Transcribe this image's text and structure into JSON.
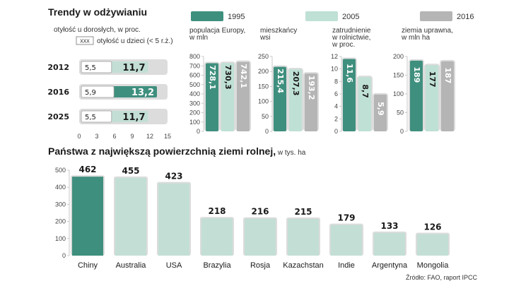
{
  "colors": {
    "c1995": "#3f8f7e",
    "c2005": "#bfe0d5",
    "c2016": "#b5b5b5",
    "track": "#dcdcdc",
    "light_bar": "#c3dfd5",
    "dark_bar": "#3f8f7e",
    "grid": "#bbbbbb"
  },
  "chart_data": [
    {
      "id": "obesity",
      "type": "bar",
      "orientation": "horizontal",
      "title": "Trendy w odżywianiu",
      "adult_label": "otyłość u dorosłych, w proc.",
      "child_badge": "xxx",
      "child_label": "otyłość u dzieci (< 5 r.ż.)",
      "categories": [
        "2012",
        "2016",
        "2025"
      ],
      "series": [
        {
          "name": "otyłość u dorosłych, w proc.",
          "values": [
            11.7,
            13.2,
            11.7
          ],
          "labels": [
            "11,7",
            "13,2",
            "11,7"
          ]
        },
        {
          "name": "otyłość u dzieci (< 5 r.ż.)",
          "values": [
            5.5,
            5.9,
            5.5
          ],
          "labels": [
            "5,5",
            "5,9",
            "5,5"
          ]
        }
      ],
      "xlim": [
        0,
        15
      ],
      "xticks": [
        "0",
        "3",
        "6",
        "9",
        "12",
        "15"
      ],
      "xtick_values": [
        0,
        3,
        6,
        9,
        12,
        15
      ]
    },
    {
      "id": "population",
      "type": "bar",
      "title": "populacja Europy, w mln",
      "title_lines": [
        "populacja Europy,",
        "w mln"
      ],
      "categories": [
        "1995",
        "2005",
        "2016"
      ],
      "values": [
        728.1,
        730.3,
        742.1
      ],
      "labels": [
        "728,1",
        "730,3",
        "742,1"
      ],
      "ylim": [
        0,
        800
      ],
      "yticks": [
        "0",
        "100",
        "200",
        "300",
        "400",
        "500",
        "600",
        "700",
        "800"
      ],
      "ytick_values": [
        0,
        100,
        200,
        300,
        400,
        500,
        600,
        700,
        800
      ]
    },
    {
      "id": "rural",
      "type": "bar",
      "title": "mieszkańcy wsi",
      "title_lines": [
        "mieszkańcy",
        "wsi"
      ],
      "categories": [
        "1995",
        "2005",
        "2016"
      ],
      "values": [
        215.4,
        207.3,
        193.2
      ],
      "labels": [
        "215,4",
        "207,3",
        "193,2"
      ],
      "ylim": [
        0,
        250
      ],
      "yticks": [
        "0",
        "50",
        "100",
        "150",
        "200",
        "250"
      ],
      "ytick_values": [
        0,
        50,
        100,
        150,
        200,
        250
      ]
    },
    {
      "id": "employment",
      "type": "bar",
      "title": "zatrudnienie w rolnictwie, w proc.",
      "title_lines": [
        "zatrudnienie",
        "w rolnictwie,",
        "w proc."
      ],
      "categories": [
        "1995",
        "2005",
        "2016"
      ],
      "values": [
        11.6,
        8.7,
        5.9
      ],
      "labels": [
        "11,6",
        "8,7",
        "5,9"
      ],
      "ylim": [
        0,
        12
      ],
      "yticks": [
        "0",
        "2",
        "4",
        "6",
        "8",
        "10",
        "12"
      ],
      "ytick_values": [
        0,
        2,
        4,
        6,
        8,
        10,
        12
      ]
    },
    {
      "id": "arable",
      "type": "bar",
      "title": "ziemia uprawna, w mln ha",
      "title_lines": [
        "ziemia uprawna,",
        "w mln ha"
      ],
      "categories": [
        "1995",
        "2005",
        "2016"
      ],
      "values": [
        189,
        177,
        187
      ],
      "labels": [
        "189",
        "177",
        "187"
      ],
      "ylim": [
        0,
        200
      ],
      "yticks": [
        "0",
        "50",
        "100",
        "150",
        "200"
      ],
      "ytick_values": [
        0,
        50,
        100,
        150,
        200
      ]
    },
    {
      "id": "countries",
      "type": "bar",
      "title": "Państwa z największą powierzchnią ziemi rolnej,",
      "title_suffix": " w tys. ha",
      "categories": [
        "Chiny",
        "Australia",
        "USA",
        "Brazylia",
        "Rosja",
        "Kazachstan",
        "Indie",
        "Argentyna",
        "Mongolia"
      ],
      "values": [
        462,
        455,
        423,
        218,
        216,
        215,
        179,
        133,
        126
      ],
      "labels": [
        "462",
        "455",
        "423",
        "218",
        "216",
        "215",
        "179",
        "133",
        "126"
      ],
      "ylim": [
        0,
        500
      ],
      "yticks": [
        "0",
        "100",
        "200",
        "300",
        "400",
        "500"
      ],
      "ytick_values": [
        0,
        100,
        200,
        300,
        400,
        500
      ]
    }
  ],
  "legend": [
    {
      "label": "1995",
      "color_key": "c1995"
    },
    {
      "label": "2005",
      "color_key": "c2005"
    },
    {
      "label": "2016",
      "color_key": "c2016"
    }
  ],
  "source": "Źródło: FAO, raport IPCC"
}
